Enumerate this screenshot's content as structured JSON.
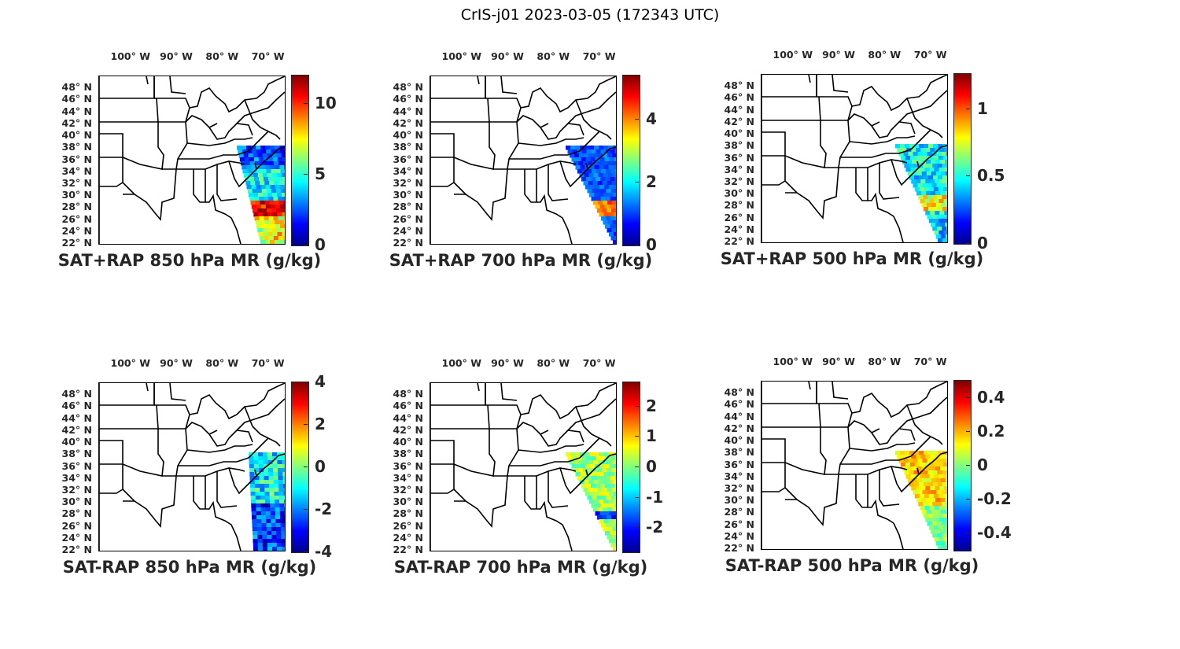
{
  "figure": {
    "title": "CrIS-j01 2023-03-05 (172343 UTC)"
  },
  "axes": {
    "lon_ticks": [
      "100° W",
      "90° W",
      "80° W",
      "70° W"
    ],
    "lat_ticks": [
      "48° N",
      "46° N",
      "44° N",
      "42° N",
      "40° N",
      "38° N",
      "36° N",
      "34° N",
      "32° N",
      "30° N",
      "28° N",
      "26° N",
      "24° N",
      "22° N"
    ]
  },
  "colormap": "jet",
  "panels": [
    {
      "label": "SAT+RAP 850 hPa MR (g/kg)",
      "colorbar": {
        "min": 0,
        "max": 12,
        "ticks": [
          {
            "v": 0,
            "t": "0"
          },
          {
            "v": 5,
            "t": "5"
          },
          {
            "v": 10,
            "t": "10"
          }
        ]
      },
      "field_style": "total_850"
    },
    {
      "label": "SAT+RAP 700 hPa MR (g/kg)",
      "colorbar": {
        "min": 0,
        "max": 5.4,
        "ticks": [
          {
            "v": 0,
            "t": "0"
          },
          {
            "v": 2,
            "t": "2"
          },
          {
            "v": 4,
            "t": "4"
          }
        ]
      },
      "field_style": "total_700"
    },
    {
      "label": "SAT+RAP 500 hPa MR (g/kg)",
      "colorbar": {
        "min": 0,
        "max": 1.26,
        "ticks": [
          {
            "v": 0,
            "t": "0"
          },
          {
            "v": 0.5,
            "t": "0.5"
          },
          {
            "v": 1,
            "t": "1"
          }
        ]
      },
      "field_style": "total_500"
    },
    {
      "label": "SAT-RAP 850 hPa MR (g/kg)",
      "colorbar": {
        "min": -4,
        "max": 4,
        "ticks": [
          {
            "v": -4,
            "t": "-4"
          },
          {
            "v": -2,
            "t": "-2"
          },
          {
            "v": 0,
            "t": "0"
          },
          {
            "v": 2,
            "t": "2"
          },
          {
            "v": 4,
            "t": "4"
          }
        ]
      },
      "field_style": "diff_850"
    },
    {
      "label": "SAT-RAP 700 hPa MR (g/kg)",
      "colorbar": {
        "min": -2.8,
        "max": 2.8,
        "ticks": [
          {
            "v": -2,
            "t": "-2"
          },
          {
            "v": -1,
            "t": "-1"
          },
          {
            "v": 0,
            "t": "0"
          },
          {
            "v": 1,
            "t": "1"
          },
          {
            "v": 2,
            "t": "2"
          }
        ]
      },
      "field_style": "diff_700"
    },
    {
      "label": "SAT-RAP 500 hPa MR (g/kg)",
      "colorbar": {
        "min": -0.5,
        "max": 0.5,
        "ticks": [
          {
            "v": -0.4,
            "t": "-0.4"
          },
          {
            "v": -0.2,
            "t": "-0.2"
          },
          {
            "v": 0,
            "t": "0"
          },
          {
            "v": 0.2,
            "t": "0.2"
          },
          {
            "v": 0.4,
            "t": "0.4"
          }
        ]
      },
      "field_style": "diff_500"
    }
  ]
}
